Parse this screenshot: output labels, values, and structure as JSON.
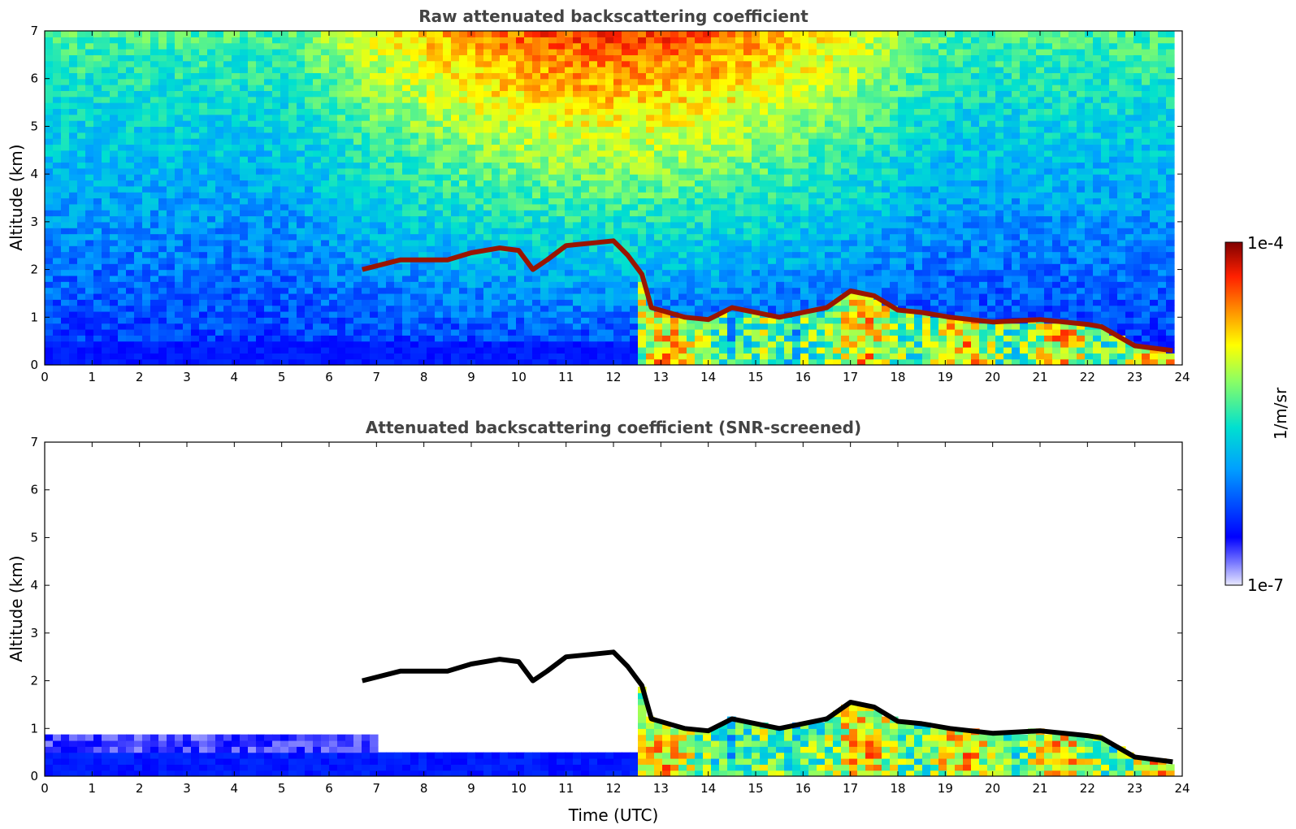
{
  "chart_data": {
    "panels": [
      {
        "type": "heatmap",
        "title": "Raw attenuated backscattering coefficient",
        "xlabel": "",
        "ylabel": "Altitude (km)",
        "xlim": [
          0,
          24
        ],
        "ylim": [
          0,
          7
        ],
        "xticks": [
          "0",
          "1",
          "2",
          "3",
          "4",
          "5",
          "6",
          "7",
          "8",
          "9",
          "10",
          "11",
          "12",
          "13",
          "14",
          "15",
          "16",
          "17",
          "18",
          "19",
          "20",
          "21",
          "22",
          "23",
          "24"
        ],
        "yticks": [
          "0",
          "1",
          "2",
          "3",
          "4",
          "5",
          "6",
          "7"
        ],
        "screened": false
      },
      {
        "type": "heatmap",
        "title": "Attenuated backscattering coefficient (SNR-screened)",
        "xlabel": "Time (UTC)",
        "ylabel": "Altitude (km)",
        "xlim": [
          0,
          24
        ],
        "ylim": [
          0,
          7
        ],
        "xticks": [
          "0",
          "1",
          "2",
          "3",
          "4",
          "5",
          "6",
          "7",
          "8",
          "9",
          "10",
          "11",
          "12",
          "13",
          "14",
          "15",
          "16",
          "17",
          "18",
          "19",
          "20",
          "21",
          "22",
          "23",
          "24"
        ],
        "yticks": [
          "0",
          "1",
          "2",
          "3",
          "4",
          "5",
          "6",
          "7"
        ],
        "screened": true
      }
    ],
    "colorbar": {
      "label": "1/m/sr",
      "min_label": "1e-7",
      "max_label": "1e-4",
      "scale": "log",
      "colormap": "jet"
    },
    "features": {
      "elevated_layer_top_km": [
        [
          6.7,
          2.0
        ],
        [
          7.5,
          2.2
        ],
        [
          8.0,
          2.2
        ],
        [
          8.5,
          2.2
        ],
        [
          9.0,
          2.35
        ],
        [
          9.6,
          2.45
        ],
        [
          10.0,
          2.4
        ],
        [
          10.3,
          2.0
        ],
        [
          10.6,
          2.2
        ],
        [
          11.0,
          2.5
        ],
        [
          11.5,
          2.55
        ],
        [
          12.0,
          2.6
        ],
        [
          12.3,
          2.3
        ],
        [
          12.6,
          1.9
        ],
        [
          12.8,
          1.2
        ],
        [
          13.5,
          1.0
        ],
        [
          14.0,
          0.95
        ],
        [
          14.5,
          1.2
        ],
        [
          15.5,
          1.0
        ],
        [
          16.5,
          1.2
        ],
        [
          17.0,
          1.55
        ],
        [
          17.5,
          1.45
        ],
        [
          18.0,
          1.15
        ],
        [
          18.5,
          1.1
        ],
        [
          19.1,
          1.0
        ],
        [
          20.0,
          0.9
        ],
        [
          21.0,
          0.95
        ],
        [
          22.0,
          0.85
        ],
        [
          22.3,
          0.8
        ],
        [
          23.0,
          0.4
        ],
        [
          23.8,
          0.3
        ]
      ]
    }
  }
}
